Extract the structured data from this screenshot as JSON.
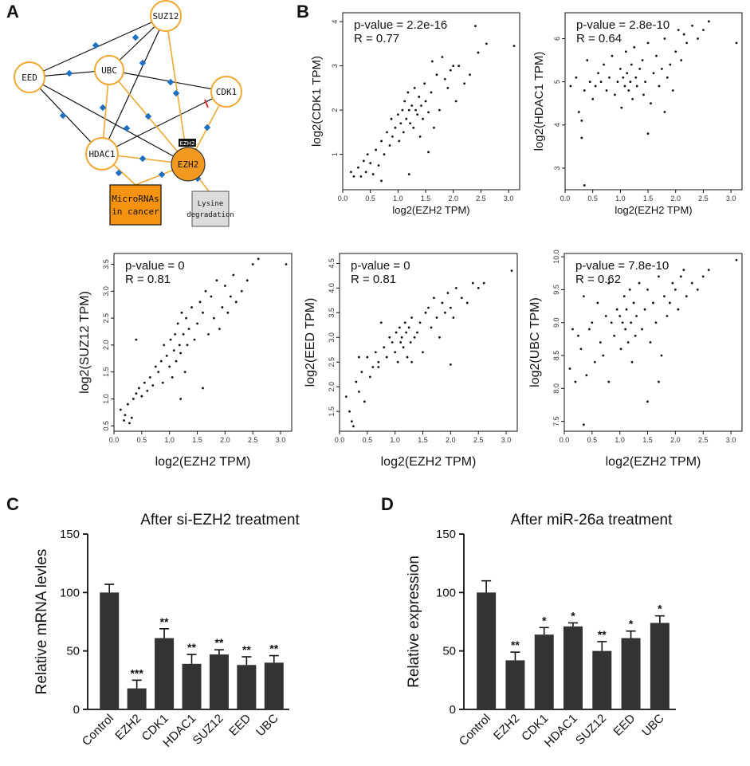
{
  "panel_labels": {
    "a": "A",
    "b": "B",
    "c": "C",
    "d": "D"
  },
  "network": {
    "nodes": [
      {
        "id": "SUZ12",
        "label": "SUZ12"
      },
      {
        "id": "UBC",
        "label": "UBC"
      },
      {
        "id": "EED",
        "label": "EED"
      },
      {
        "id": "CDK1",
        "label": "CDK1"
      },
      {
        "id": "HDAC1",
        "label": "HDAC1"
      },
      {
        "id": "EZH2",
        "label": "EZH2"
      }
    ],
    "ezh2_tag": "EZH2",
    "box_microrna_line1": "MicroRNAs",
    "box_microrna_line2": "in cancer",
    "box_lysine_line1": "Lysine",
    "box_lysine_line2": "degradation",
    "colors": {
      "node_border": "#f0a830",
      "hub_fill": "#f29a1f",
      "box_orange": "#f59310",
      "box_gray": "#dcdcdc",
      "diamond": "#1f6fc4",
      "inhibit": "#e03030"
    }
  },
  "chart_data": [
    {
      "id": "scatter_cdk1",
      "type": "scatter",
      "xlabel": "log2(EZH2 TPM)",
      "ylabel": "log2(CDK1 TPM)",
      "ylabel_stub": ":1 TPM)",
      "pvalue_text": "p-value = 2.2e-16",
      "r_text": "R = 0.77",
      "xlim": [
        0,
        3.2
      ],
      "ylim": [
        0.2,
        4.2
      ],
      "xticks": [
        0.0,
        0.5,
        1.0,
        1.5,
        2.0,
        2.5,
        3.0
      ],
      "yticks": [
        1,
        2,
        3,
        4
      ],
      "x": [
        0.15,
        0.2,
        0.28,
        0.33,
        0.38,
        0.42,
        0.45,
        0.5,
        0.55,
        0.6,
        0.65,
        0.7,
        0.75,
        0.8,
        0.85,
        0.88,
        0.9,
        0.95,
        1.0,
        1.02,
        1.05,
        1.08,
        1.1,
        1.12,
        1.15,
        1.18,
        1.2,
        1.22,
        1.25,
        1.28,
        1.3,
        1.32,
        1.35,
        1.38,
        1.4,
        1.42,
        1.45,
        1.48,
        1.5,
        1.55,
        1.6,
        1.62,
        1.65,
        1.7,
        1.75,
        1.8,
        1.85,
        1.9,
        1.95,
        2.0,
        2.05,
        2.1,
        2.2,
        2.3,
        2.4,
        2.45,
        2.6,
        3.1,
        0.7,
        1.2,
        1.55
      ],
      "y": [
        0.6,
        0.5,
        0.7,
        0.5,
        0.85,
        0.6,
        1.0,
        0.8,
        0.55,
        1.1,
        0.75,
        1.3,
        1.0,
        1.5,
        1.2,
        1.8,
        1.4,
        1.6,
        1.9,
        1.3,
        1.7,
        2.0,
        1.5,
        2.2,
        1.8,
        2.4,
        2.0,
        1.7,
        2.1,
        1.6,
        2.5,
        2.0,
        1.9,
        2.3,
        1.4,
        2.1,
        1.8,
        2.6,
        2.2,
        1.95,
        2.4,
        3.1,
        1.6,
        2.8,
        2.0,
        3.2,
        2.7,
        2.5,
        2.9,
        3.0,
        2.2,
        3.0,
        2.6,
        2.8,
        3.9,
        3.3,
        3.5,
        3.45,
        0.4,
        0.55,
        1.05
      ]
    },
    {
      "id": "scatter_hdac1",
      "type": "scatter",
      "xlabel": "log2(EZH2 TPM)",
      "ylabel": "log2(HDAC1 TPM)",
      "ylabel_stub": ":1 TPM)",
      "pvalue_text": "p-value = 2.8e-10",
      "r_text": "R = 0.64",
      "xlim": [
        0,
        3.2
      ],
      "ylim": [
        2.5,
        6.6
      ],
      "xticks": [
        0.0,
        0.5,
        1.0,
        1.5,
        2.0,
        2.5,
        3.0
      ],
      "yticks": [
        3,
        4,
        5,
        6
      ],
      "x": [
        0.1,
        0.2,
        0.25,
        0.3,
        0.35,
        0.4,
        0.45,
        0.5,
        0.55,
        0.6,
        0.65,
        0.7,
        0.75,
        0.8,
        0.85,
        0.9,
        0.95,
        1.0,
        1.02,
        1.05,
        1.08,
        1.1,
        1.12,
        1.15,
        1.18,
        1.2,
        1.22,
        1.25,
        1.28,
        1.3,
        1.35,
        1.4,
        1.42,
        1.45,
        1.5,
        1.55,
        1.6,
        1.65,
        1.7,
        1.75,
        1.8,
        1.85,
        1.9,
        1.95,
        2.0,
        2.05,
        2.1,
        2.15,
        2.2,
        2.3,
        2.4,
        2.5,
        2.6,
        3.1,
        0.35,
        0.3,
        1.5,
        1.8
      ],
      "y": [
        4.9,
        5.1,
        4.3,
        3.7,
        4.8,
        5.5,
        5.0,
        4.6,
        4.9,
        5.2,
        5.0,
        5.4,
        4.8,
        5.1,
        5.6,
        4.7,
        5.0,
        5.3,
        4.4,
        5.1,
        4.9,
        5.7,
        5.2,
        4.8,
        5.0,
        5.4,
        4.6,
        5.8,
        5.1,
        4.9,
        5.3,
        5.5,
        4.7,
        5.0,
        5.9,
        4.5,
        5.2,
        5.6,
        4.9,
        5.3,
        6.0,
        5.1,
        5.4,
        4.8,
        5.7,
        6.2,
        5.5,
        6.1,
        5.9,
        6.3,
        6.0,
        6.2,
        6.4,
        5.9,
        2.6,
        4.1,
        3.8,
        4.3
      ]
    },
    {
      "id": "scatter_suz12",
      "type": "scatter",
      "xlabel": "log2(EZH2 TPM)",
      "ylabel": "log2(SUZ12 TPM)",
      "pvalue_text": "p-value = 0",
      "r_text": "R = 0.81",
      "xlim": [
        0,
        3.2
      ],
      "ylim": [
        0.4,
        3.7
      ],
      "xticks": [
        0.0,
        0.5,
        1.0,
        1.5,
        2.0,
        2.5,
        3.0
      ],
      "yticks": [
        0.5,
        1.0,
        1.5,
        2.0,
        2.5,
        3.0,
        3.5
      ],
      "x": [
        0.12,
        0.18,
        0.2,
        0.25,
        0.28,
        0.32,
        0.35,
        0.4,
        0.45,
        0.5,
        0.55,
        0.6,
        0.65,
        0.7,
        0.75,
        0.8,
        0.85,
        0.88,
        0.9,
        0.95,
        1.0,
        1.02,
        1.05,
        1.08,
        1.1,
        1.12,
        1.15,
        1.18,
        1.2,
        1.22,
        1.25,
        1.28,
        1.3,
        1.32,
        1.35,
        1.4,
        1.45,
        1.5,
        1.55,
        1.6,
        1.65,
        1.7,
        1.75,
        1.8,
        1.85,
        1.9,
        1.95,
        2.0,
        2.05,
        2.1,
        2.15,
        2.2,
        2.3,
        2.4,
        2.5,
        2.6,
        3.1,
        0.4,
        1.6,
        1.2
      ],
      "y": [
        0.8,
        0.6,
        0.7,
        0.9,
        0.55,
        0.65,
        1.0,
        1.1,
        1.2,
        1.05,
        1.3,
        1.15,
        1.4,
        1.25,
        1.6,
        1.5,
        1.7,
        1.3,
        2.0,
        1.8,
        1.6,
        2.1,
        1.4,
        1.9,
        2.2,
        1.7,
        2.4,
        2.0,
        1.85,
        2.6,
        2.2,
        1.5,
        2.5,
        2.0,
        2.3,
        2.7,
        2.1,
        2.4,
        2.8,
        2.6,
        3.0,
        2.2,
        2.9,
        2.5,
        3.2,
        2.3,
        2.7,
        3.1,
        2.6,
        2.9,
        3.3,
        2.8,
        3.0,
        3.2,
        3.5,
        3.6,
        3.5,
        2.1,
        1.2,
        1.0
      ]
    },
    {
      "id": "scatter_eed",
      "type": "scatter",
      "xlabel": "log2(EZH2 TPM)",
      "ylabel": "log2(EED TPM)",
      "pvalue_text": "p-value = 0",
      "r_text": "R = 0.81",
      "xlim": [
        0,
        3.2
      ],
      "ylim": [
        1.1,
        4.7
      ],
      "xticks": [
        0.0,
        0.5,
        1.0,
        1.5,
        2.0,
        2.5,
        3.0
      ],
      "yticks": [
        1.5,
        2.0,
        2.5,
        3.0,
        3.5,
        4.0,
        4.5
      ],
      "x": [
        0.12,
        0.18,
        0.22,
        0.25,
        0.3,
        0.35,
        0.4,
        0.45,
        0.5,
        0.55,
        0.6,
        0.65,
        0.7,
        0.75,
        0.8,
        0.85,
        0.9,
        0.95,
        1.0,
        1.02,
        1.05,
        1.08,
        1.1,
        1.12,
        1.15,
        1.18,
        1.2,
        1.22,
        1.25,
        1.28,
        1.3,
        1.35,
        1.4,
        1.45,
        1.5,
        1.55,
        1.6,
        1.65,
        1.7,
        1.75,
        1.8,
        1.85,
        1.9,
        1.95,
        2.0,
        2.05,
        2.1,
        2.2,
        2.3,
        2.4,
        2.5,
        2.6,
        3.1,
        0.35,
        0.7,
        2.0,
        1.3
      ],
      "y": [
        1.8,
        1.5,
        1.3,
        1.2,
        2.1,
        1.9,
        2.3,
        1.7,
        2.6,
        2.2,
        2.4,
        2.7,
        2.5,
        3.3,
        2.8,
        2.6,
        3.0,
        2.9,
        2.7,
        3.1,
        2.5,
        3.2,
        2.9,
        3.0,
        2.8,
        3.3,
        3.1,
        2.6,
        3.2,
        2.9,
        3.4,
        3.0,
        3.1,
        3.3,
        2.7,
        3.5,
        3.6,
        3.2,
        3.8,
        3.4,
        3.0,
        3.7,
        3.5,
        3.9,
        3.6,
        3.4,
        4.0,
        3.8,
        3.7,
        4.1,
        4.0,
        4.1,
        4.35,
        2.6,
        2.4,
        2.45,
        2.5
      ]
    },
    {
      "id": "scatter_ubc",
      "type": "scatter",
      "xlabel": "log2(EZH2 TPM)",
      "ylabel": "log2(UBC TPM)",
      "pvalue_text": "p-value = 7.8e-10",
      "r_text": "R = 0.62",
      "xlim": [
        0,
        3.2
      ],
      "ylim": [
        7.35,
        10.05
      ],
      "xticks": [
        0.0,
        0.5,
        1.0,
        1.5,
        2.0,
        2.5,
        3.0
      ],
      "yticks": [
        7.5,
        8.0,
        8.5,
        9.0,
        9.5,
        10.0
      ],
      "x": [
        0.1,
        0.15,
        0.2,
        0.25,
        0.3,
        0.35,
        0.4,
        0.45,
        0.5,
        0.55,
        0.6,
        0.65,
        0.7,
        0.75,
        0.8,
        0.85,
        0.9,
        0.95,
        1.0,
        1.02,
        1.05,
        1.08,
        1.1,
        1.12,
        1.15,
        1.18,
        1.2,
        1.22,
        1.25,
        1.28,
        1.3,
        1.35,
        1.4,
        1.45,
        1.5,
        1.55,
        1.6,
        1.65,
        1.7,
        1.75,
        1.8,
        1.85,
        1.9,
        1.95,
        2.0,
        2.05,
        2.1,
        2.15,
        2.2,
        2.3,
        2.4,
        2.5,
        2.6,
        3.1,
        0.35,
        0.8,
        1.5,
        1.7
      ],
      "y": [
        8.3,
        8.9,
        8.1,
        8.8,
        8.6,
        9.4,
        8.2,
        8.9,
        9.0,
        8.4,
        9.3,
        8.7,
        8.5,
        9.1,
        9.6,
        9.0,
        8.8,
        9.2,
        9.1,
        8.6,
        9.0,
        9.4,
        8.9,
        9.2,
        8.7,
        9.5,
        9.0,
        8.4,
        9.3,
        8.8,
        9.1,
        9.6,
        8.9,
        9.2,
        9.5,
        8.7,
        9.3,
        9.0,
        9.7,
        8.5,
        9.4,
        9.1,
        9.3,
        9.6,
        9.5,
        9.2,
        9.7,
        9.8,
        9.4,
        9.6,
        9.5,
        9.7,
        9.8,
        9.95,
        7.45,
        8.1,
        7.8,
        8.1
      ]
    },
    {
      "id": "bar_si_ezh2",
      "type": "bar",
      "title": "After si-EZH2 treatment",
      "xlabel": "",
      "ylabel": "Relative mRNA levles",
      "categories": [
        "Control",
        "EZH2",
        "CDK1",
        "HDAC1",
        "SUZ12",
        "EED",
        "UBC"
      ],
      "values": [
        100,
        18,
        61,
        39,
        47,
        38,
        40
      ],
      "errors": [
        7,
        7,
        8,
        8,
        4,
        7,
        6
      ],
      "significance": [
        "",
        "***",
        "**",
        "**",
        "**",
        "**",
        "**"
      ],
      "ylim": [
        0,
        150
      ],
      "yticks": [
        0,
        50,
        100,
        150
      ]
    },
    {
      "id": "bar_mir26a",
      "type": "bar",
      "title": "After miR-26a treatment",
      "xlabel": "",
      "ylabel": "Relative expression",
      "categories": [
        "Control",
        "EZH2",
        "CDK1",
        "HDAC1",
        "SUZ12",
        "EED",
        "UBC"
      ],
      "values": [
        100,
        42,
        64,
        71,
        50,
        61,
        74
      ],
      "errors": [
        10,
        7,
        6,
        3,
        8,
        6,
        6
      ],
      "significance": [
        "",
        "**",
        "*",
        "*",
        "**",
        "*",
        "*"
      ],
      "ylim": [
        0,
        150
      ],
      "yticks": [
        0,
        50,
        100,
        150
      ]
    }
  ]
}
